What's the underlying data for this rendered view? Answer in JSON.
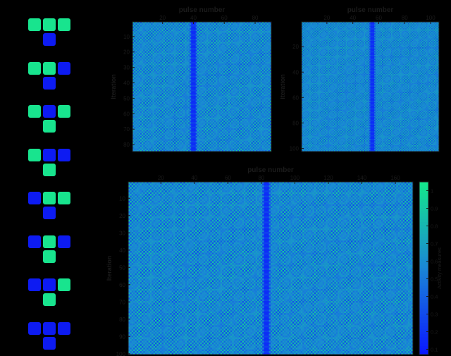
{
  "colors": {
    "background": "#000000",
    "heat_low": "#0a19ff",
    "heat_mid": "#1a86d6",
    "heat_high": "#14e68c",
    "tetromino_on": "#18e48e",
    "tetromino_off": "#0d1bf2",
    "axis_text": "#1b1b1b"
  },
  "tetrominoes": [
    {
      "top": [
        "on",
        "on",
        "on"
      ],
      "bottom": "off"
    },
    {
      "top": [
        "on",
        "on",
        "off"
      ],
      "bottom": "off"
    },
    {
      "top": [
        "on",
        "off",
        "on"
      ],
      "bottom": "on"
    },
    {
      "top": [
        "on",
        "off",
        "off"
      ],
      "bottom": "on"
    },
    {
      "top": [
        "off",
        "on",
        "on"
      ],
      "bottom": "off"
    },
    {
      "top": [
        "off",
        "on",
        "off"
      ],
      "bottom": "on"
    },
    {
      "top": [
        "off",
        "off",
        "on"
      ],
      "bottom": "on"
    },
    {
      "top": [
        "off",
        "off",
        "off"
      ],
      "bottom": "off"
    }
  ],
  "chart_data": [
    {
      "type": "heatmap",
      "xlabel": "pulse number",
      "ylabel": "Iteration",
      "x_ticks": [
        "20",
        "40",
        "60",
        "80"
      ],
      "y_ticks": [
        "10",
        "20",
        "30",
        "40",
        "50",
        "60",
        "70",
        "80"
      ],
      "x_range": [
        1,
        90
      ],
      "y_range": [
        1,
        84
      ],
      "defect_column": 40,
      "notes": "checkerboard-like oscillating pattern with diagonal fronts and a low-value column near pulse 40"
    },
    {
      "type": "heatmap",
      "xlabel": "pulse number",
      "ylabel": "Iteration",
      "x_ticks": [
        "20",
        "40",
        "60",
        "80",
        "100"
      ],
      "y_ticks": [
        "20",
        "40",
        "60",
        "80",
        "100"
      ],
      "x_range": [
        1,
        106
      ],
      "y_range": [
        1,
        102
      ],
      "defect_column": 55,
      "notes": "checkerboard-like oscillating pattern with diagonal fronts and a low-value column near pulse 55"
    },
    {
      "type": "heatmap",
      "xlabel": "pulse number",
      "ylabel": "Iteration",
      "x_ticks": [
        "20",
        "40",
        "60",
        "80",
        "100",
        "120",
        "140",
        "160"
      ],
      "y_ticks": [
        "10",
        "20",
        "30",
        "40",
        "50",
        "60",
        "70",
        "80",
        "90",
        "100"
      ],
      "x_range": [
        1,
        170
      ],
      "y_range": [
        1,
        100
      ],
      "defect_column": 83,
      "colorbar": {
        "label": "Activity measures",
        "ticks": [
          "0.1",
          "0.2",
          "0.3",
          "0.4",
          "0.5",
          "0.6",
          "0.7",
          "0.8",
          "0.9",
          "1"
        ],
        "range": [
          0.07,
          1.05
        ]
      },
      "notes": "checkerboard-like oscillating pattern with diagonal fronts and a low-value column near pulse 83"
    }
  ]
}
